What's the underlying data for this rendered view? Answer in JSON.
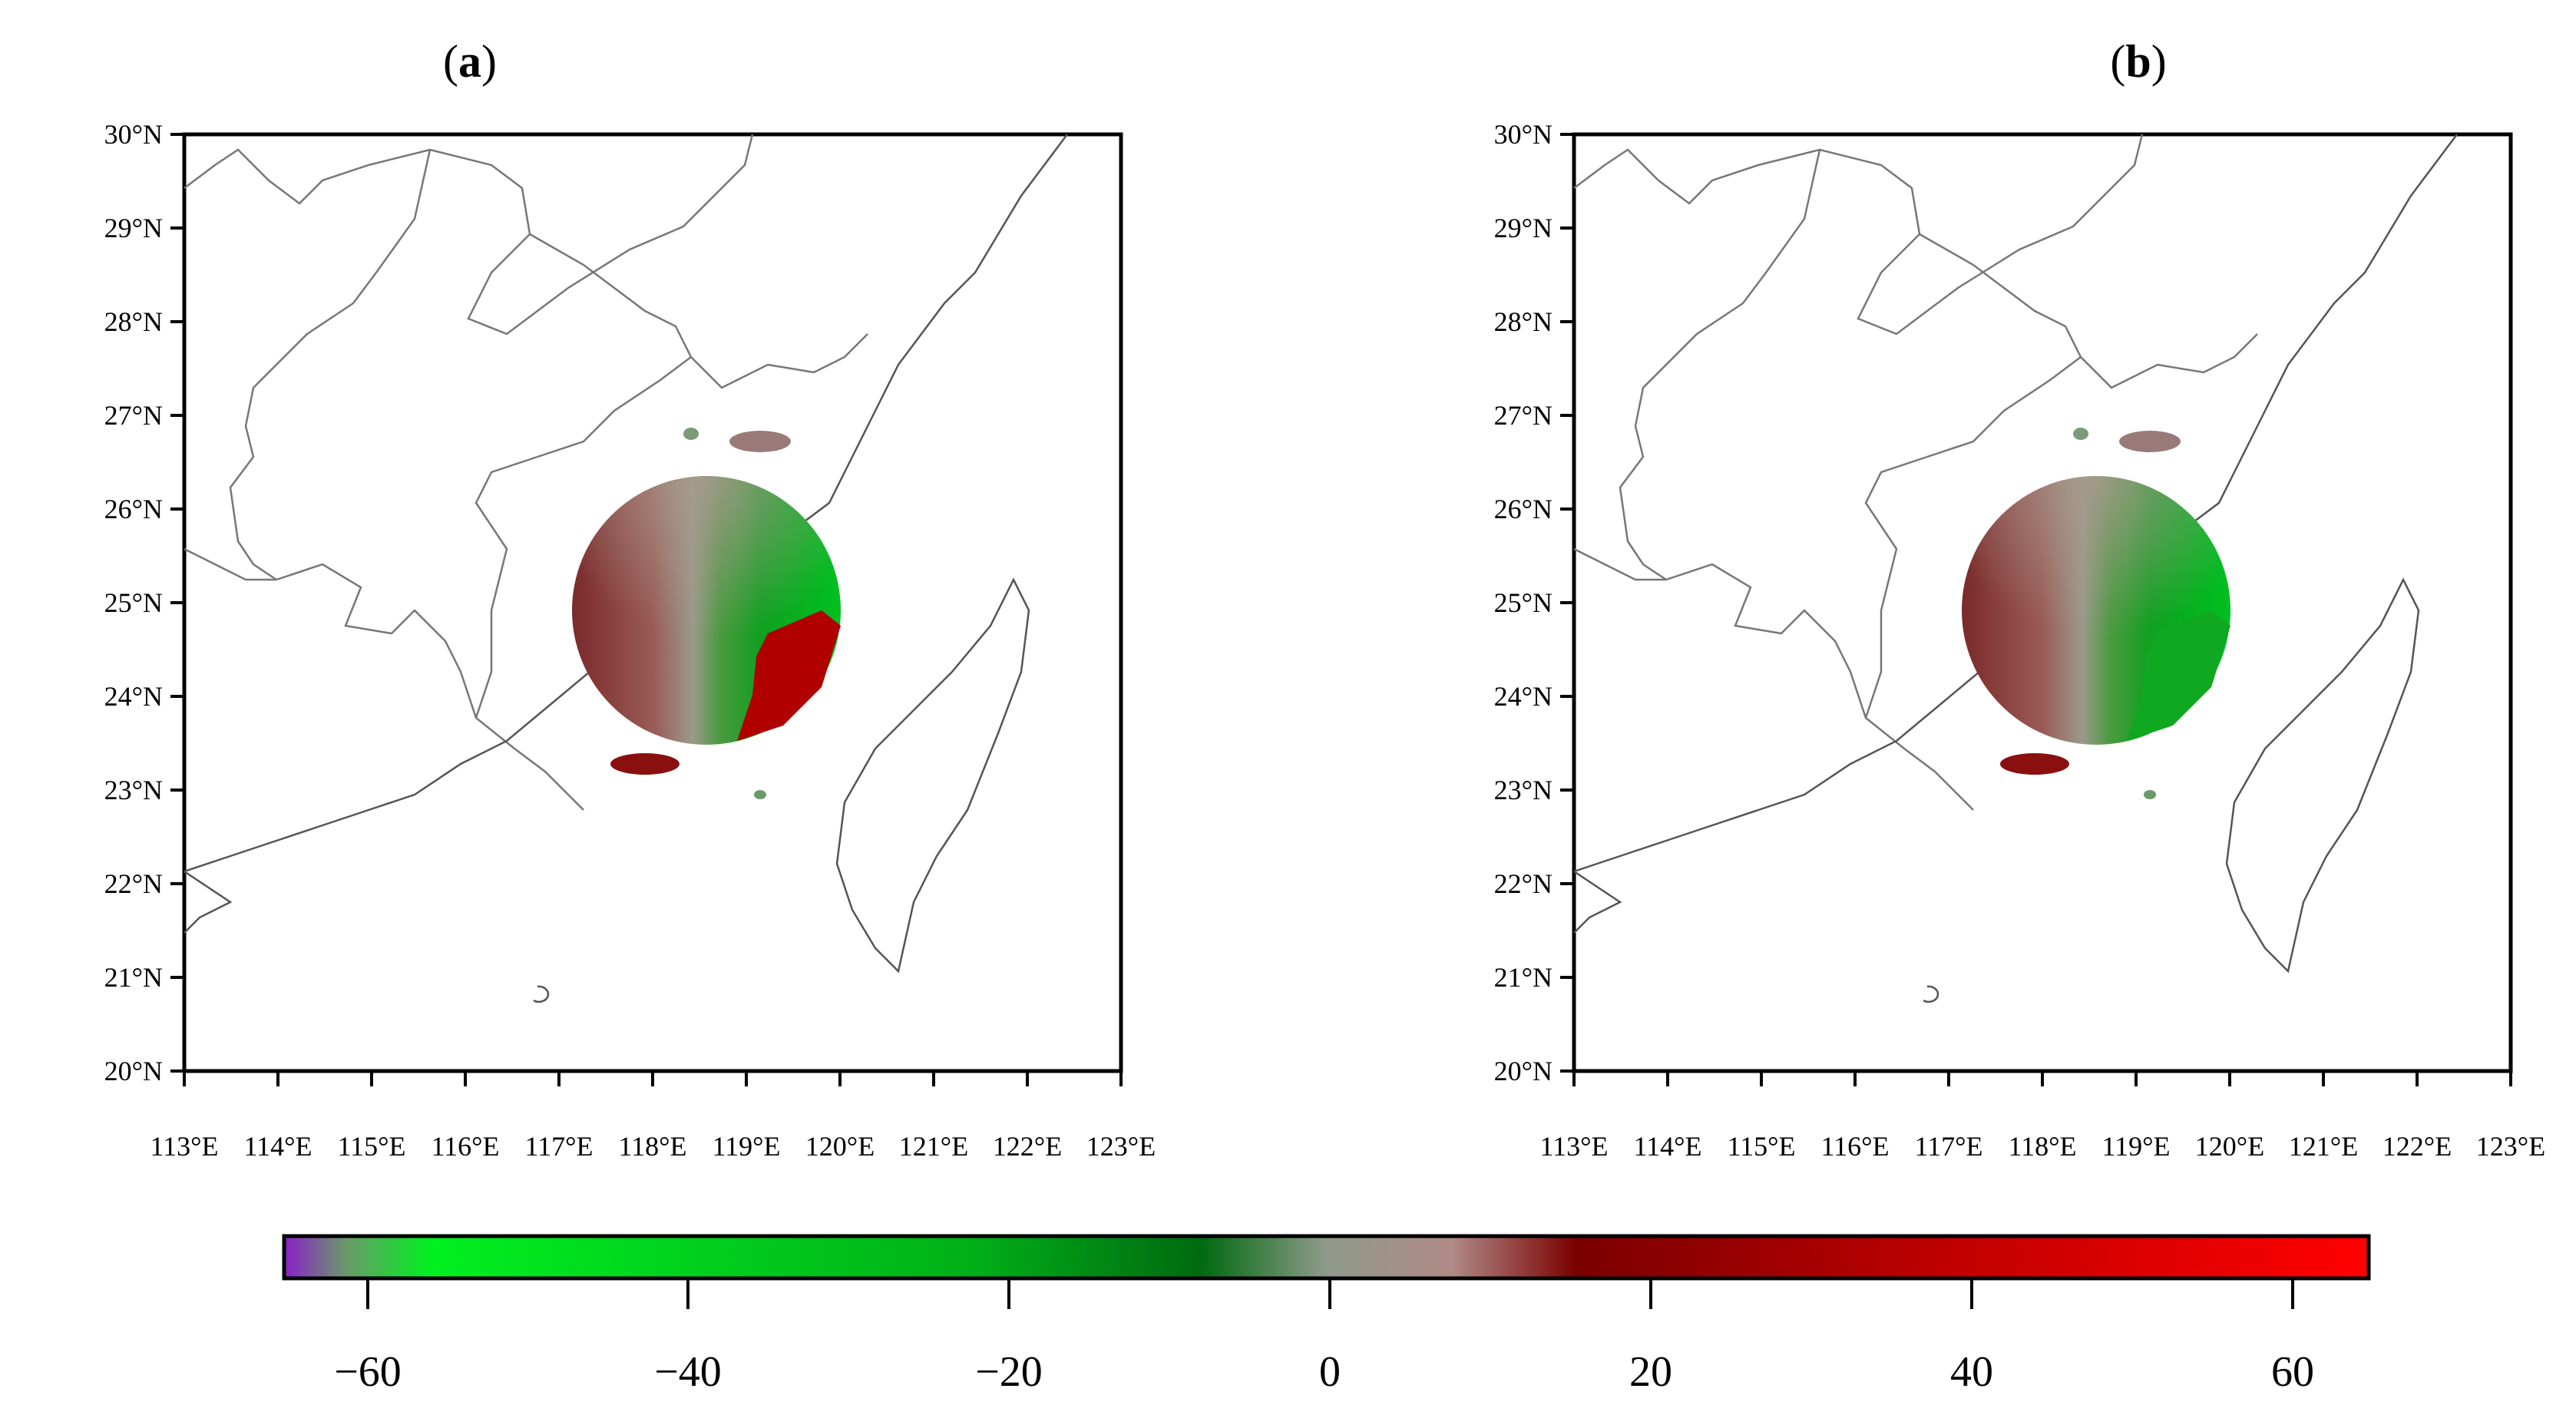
{
  "panels": [
    {
      "id": "a",
      "label_prefix": "(",
      "label_letter": "a",
      "label_suffix": ")"
    },
    {
      "id": "b",
      "label_prefix": "(",
      "label_letter": "b",
      "label_suffix": ")"
    }
  ],
  "map": {
    "lat_ticks": [
      "30°N",
      "29°N",
      "28°N",
      "27°N",
      "26°N",
      "25°N",
      "24°N",
      "23°N",
      "22°N",
      "21°N",
      "20°N"
    ],
    "lon_ticks": [
      "113°E",
      "114°E",
      "115°E",
      "116°E",
      "117°E",
      "118°E",
      "119°E",
      "120°E",
      "121°E",
      "122°E",
      "123°E"
    ],
    "lon_range": [
      113,
      123
    ],
    "lat_range": [
      20,
      30
    ],
    "radar_center": {
      "lon": 118.6,
      "lat": 24.9
    },
    "radar_range_deg": 1.4,
    "panel_a_note": "positive (red) velocity patch in southeast quadrant",
    "panel_b_note": "dealiased: southeast quadrant green"
  },
  "colorbar": {
    "ticks": [
      "−60",
      "−40",
      "−20",
      "0",
      "20",
      "40",
      "60"
    ],
    "tick_values": [
      -60,
      -40,
      -20,
      0,
      20,
      40,
      60
    ],
    "range": [
      -65,
      65
    ],
    "colors": {
      "min": "#8a20c8",
      "neg_bright": "#00f020",
      "neg_dark": "#007a10",
      "zero": "#8f9a8a",
      "pos_light": "#b08a86",
      "pos_dark": "#7a0000",
      "max": "#ff0000"
    }
  }
}
